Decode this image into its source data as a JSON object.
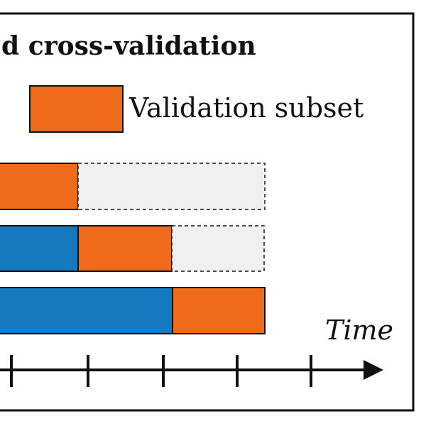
{
  "title": "d cross-validation",
  "legend": {
    "label": "Validation subset"
  },
  "axis": {
    "label": "Time"
  },
  "rows": [
    {
      "segments": [
        "validation",
        "unused"
      ]
    },
    {
      "segments": [
        "training",
        "validation",
        "unused"
      ]
    },
    {
      "segments": [
        "training",
        "validation"
      ]
    }
  ],
  "colors": {
    "training": "#1479be",
    "validation": "#ef6a1a",
    "unused": "#f0f0f0",
    "border": "#111111"
  }
}
